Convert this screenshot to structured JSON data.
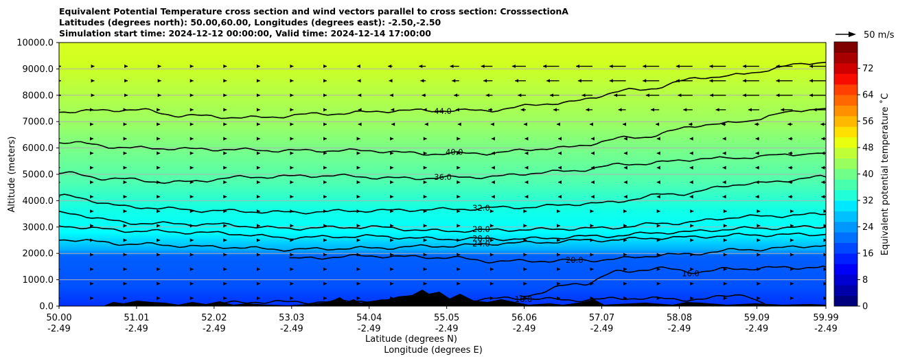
{
  "title": {
    "line1": "Equivalent Potential Temperature cross section and wind vectors parallel to cross section: CrosssectionA",
    "line2": "Latitudes (degrees north): 50.00,60.00, Longitudes (degrees east): -2.50,-2.50",
    "line3": "Simulation start time: 2024-12-12 00:00:00, Valid time: 2024-12-14 17:00:00"
  },
  "chart_data": {
    "type": "contour",
    "ylabel": "Altitude (meters)",
    "xlabel_line1": "Latitude (degrees N)",
    "xlabel_line2": "Longitude (degrees E)",
    "ylim": [
      0,
      10000
    ],
    "xlim": [
      50.0,
      59.99
    ],
    "yticks": [
      "0.0",
      "1000.0",
      "2000.0",
      "3000.0",
      "4000.0",
      "5000.0",
      "6000.0",
      "7000.0",
      "8000.0",
      "9000.0",
      "10000.0"
    ],
    "yvalues": [
      0,
      1000,
      2000,
      3000,
      4000,
      5000,
      6000,
      7000,
      8000,
      9000,
      10000
    ],
    "xticks": [
      {
        "lat": "50.00",
        "lon": "-2.49",
        "v": 50.0
      },
      {
        "lat": "51.01",
        "lon": "-2.49",
        "v": 51.01
      },
      {
        "lat": "52.02",
        "lon": "-2.49",
        "v": 52.02
      },
      {
        "lat": "53.03",
        "lon": "-2.49",
        "v": 53.03
      },
      {
        "lat": "54.04",
        "lon": "-2.49",
        "v": 54.04
      },
      {
        "lat": "55.05",
        "lon": "-2.49",
        "v": 55.05
      },
      {
        "lat": "56.06",
        "lon": "-2.49",
        "v": 56.06
      },
      {
        "lat": "57.07",
        "lon": "-2.49",
        "v": 57.07
      },
      {
        "lat": "58.08",
        "lon": "-2.49",
        "v": 58.08
      },
      {
        "lat": "59.09",
        "lon": "-2.49",
        "v": 59.09
      },
      {
        "lat": "59.99",
        "lon": "-2.49",
        "v": 59.99
      }
    ],
    "grid": "horizontal",
    "colorbar": {
      "label": "Equivalent potential temperature ˚C",
      "range": [
        0,
        80
      ],
      "ticks": [
        "0",
        "8",
        "16",
        "24",
        "32",
        "40",
        "48",
        "56",
        "64",
        "72"
      ],
      "tick_values": [
        0,
        8,
        16,
        24,
        32,
        40,
        48,
        56,
        64,
        72
      ]
    },
    "wind_key": {
      "label": "50 m/s",
      "speed": 50
    },
    "contours": [
      {
        "value": 44,
        "label": "44.0",
        "points": [
          [
            50.0,
            7380
          ],
          [
            51.0,
            7450
          ],
          [
            51.6,
            7230
          ],
          [
            52.5,
            7150
          ],
          [
            53.5,
            7300
          ],
          [
            54.5,
            7420
          ],
          [
            55.5,
            7420
          ],
          [
            56.5,
            7700
          ],
          [
            57.5,
            8200
          ],
          [
            58.5,
            8700
          ],
          [
            59.99,
            9250
          ]
        ]
      },
      {
        "value": 40,
        "label": "40.0",
        "points": [
          [
            50.0,
            6220
          ],
          [
            51.0,
            6000
          ],
          [
            52.0,
            5950
          ],
          [
            53.0,
            5900
          ],
          [
            54.0,
            5900
          ],
          [
            54.8,
            5780
          ],
          [
            55.5,
            5800
          ],
          [
            56.5,
            6000
          ],
          [
            57.5,
            6400
          ],
          [
            58.5,
            6900
          ],
          [
            59.99,
            7500
          ]
        ]
      },
      {
        "value": 36,
        "label": "36.0",
        "points": [
          [
            50.0,
            5070
          ],
          [
            50.6,
            4850
          ],
          [
            51.5,
            4700
          ],
          [
            52.5,
            4900
          ],
          [
            53.5,
            4950
          ],
          [
            54.5,
            4850
          ],
          [
            55.5,
            4900
          ],
          [
            56.5,
            5100
          ],
          [
            57.5,
            5400
          ],
          [
            58.5,
            5600
          ],
          [
            59.99,
            5800
          ]
        ]
      },
      {
        "value": 32,
        "label": "32.0",
        "points": [
          [
            50.0,
            4180
          ],
          [
            51.0,
            3750
          ],
          [
            52.0,
            3620
          ],
          [
            53.0,
            3560
          ],
          [
            54.0,
            3620
          ],
          [
            55.0,
            3670
          ],
          [
            56.0,
            3750
          ],
          [
            57.0,
            3900
          ],
          [
            58.0,
            4250
          ],
          [
            59.0,
            4650
          ],
          [
            59.99,
            4900
          ]
        ]
      },
      {
        "value": 28,
        "label": "28.0",
        "points": [
          [
            50.0,
            3530
          ],
          [
            51.0,
            3150
          ],
          [
            52.0,
            3100
          ],
          [
            53.0,
            2950
          ],
          [
            54.0,
            3000
          ],
          [
            55.0,
            2850
          ],
          [
            56.0,
            2900
          ],
          [
            57.0,
            2950
          ],
          [
            58.0,
            3150
          ],
          [
            59.0,
            3400
          ],
          [
            59.99,
            3480
          ]
        ]
      },
      {
        "value": 28,
        "label": "28.0",
        "points": [
          [
            50.0,
            3030
          ],
          [
            51.0,
            2850
          ],
          [
            52.0,
            2780
          ],
          [
            53.0,
            2600
          ],
          [
            54.0,
            2650
          ],
          [
            55.0,
            2550
          ],
          [
            56.0,
            2550
          ],
          [
            57.0,
            2650
          ],
          [
            58.0,
            2800
          ],
          [
            59.0,
            2950
          ],
          [
            59.99,
            3000
          ]
        ]
      },
      {
        "value": 24,
        "label": "24.0",
        "points": [
          [
            50.0,
            2530
          ],
          [
            51.0,
            2350
          ],
          [
            52.0,
            2250
          ],
          [
            53.0,
            2150
          ],
          [
            54.0,
            2200
          ],
          [
            55.0,
            2280
          ],
          [
            56.0,
            2400
          ],
          [
            57.0,
            2500
          ],
          [
            58.0,
            2600
          ],
          [
            59.0,
            2700
          ],
          [
            59.99,
            2720
          ]
        ]
      },
      {
        "value": 20,
        "label": "20.0",
        "points": [
          [
            53.0,
            1800
          ],
          [
            54.0,
            1900
          ],
          [
            55.0,
            1850
          ],
          [
            55.7,
            1700
          ],
          [
            56.5,
            1720
          ],
          [
            57.0,
            1750
          ],
          [
            58.0,
            1950
          ],
          [
            59.0,
            2150
          ],
          [
            59.99,
            2300
          ]
        ]
      },
      {
        "value": 16,
        "label": "16.0",
        "points": [
          [
            56.0,
            400
          ],
          [
            56.8,
            850
          ],
          [
            57.3,
            1300
          ],
          [
            57.8,
            1430
          ],
          [
            58.3,
            1300
          ],
          [
            58.8,
            1420
          ],
          [
            59.5,
            1460
          ],
          [
            59.99,
            1480
          ]
        ]
      },
      {
        "value": 16,
        "label": "16.0",
        "points": [
          [
            52.0,
            100
          ],
          [
            52.6,
            160
          ],
          [
            53.2,
            150
          ],
          [
            54.0,
            200
          ],
          [
            54.7,
            150
          ],
          [
            55.3,
            250
          ],
          [
            56.0,
            300
          ],
          [
            56.7,
            230
          ],
          [
            57.5,
            300
          ],
          [
            58.3,
            250
          ],
          [
            58.9,
            450
          ],
          [
            59.2,
            60
          ]
        ]
      }
    ]
  }
}
